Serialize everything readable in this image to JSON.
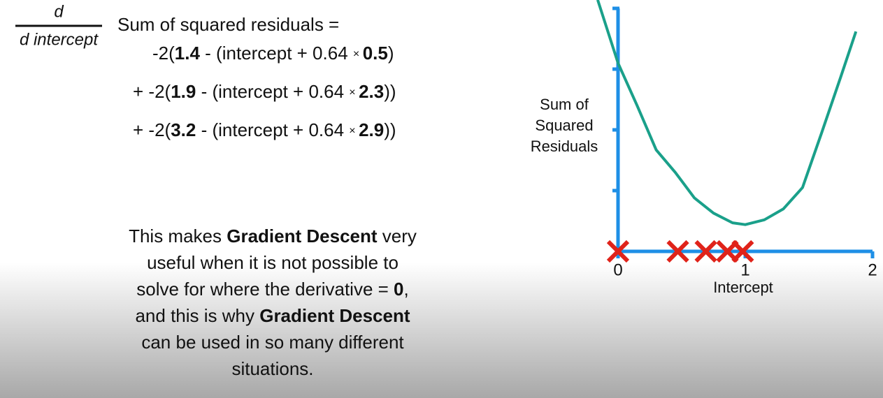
{
  "formula": {
    "numerator": "d",
    "denominator": "d intercept",
    "lead": "Sum of squared residuals =",
    "terms": [
      [
        {
          "text": "-2("
        },
        {
          "text": "1.4",
          "bold": true
        },
        {
          "text": " - (intercept + 0.64 "
        },
        {
          "text": "× ",
          "small": true
        },
        {
          "text": "0.5",
          "bold": true
        },
        {
          "text": ")"
        }
      ],
      [
        {
          "text": "+ -2("
        },
        {
          "text": "1.9",
          "bold": true
        },
        {
          "text": " - (intercept + 0.64 "
        },
        {
          "text": "× ",
          "small": true
        },
        {
          "text": "2.3",
          "bold": true
        },
        {
          "text": "))"
        }
      ],
      [
        {
          "text": "+ -2("
        },
        {
          "text": "3.2",
          "bold": true
        },
        {
          "text": " - (intercept + 0.64 "
        },
        {
          "text": "× ",
          "small": true
        },
        {
          "text": "2.9",
          "bold": true
        },
        {
          "text": "))"
        }
      ]
    ]
  },
  "paragraph": [
    [
      {
        "text": "This makes "
      },
      {
        "text": "Gradient Descent",
        "bold": true
      },
      {
        "text": " very"
      }
    ],
    [
      {
        "text": "useful when it is not possible to"
      }
    ],
    [
      {
        "text": "solve for where the derivative = "
      },
      {
        "text": "0",
        "bold": true
      },
      {
        "text": ","
      }
    ],
    [
      {
        "text": "and this is why "
      },
      {
        "text": "Gradient Descent",
        "bold": true
      }
    ],
    [
      {
        "text": "can be used in so many different"
      }
    ],
    [
      {
        "text": "situations."
      }
    ]
  ],
  "chart_data": {
    "type": "line",
    "y_label": [
      "Sum of",
      "Squared",
      "Residuals"
    ],
    "x_label": "Intercept",
    "xlim": [
      0,
      2
    ],
    "xticks": [
      0,
      1,
      2
    ],
    "ylim": [
      0,
      4
    ],
    "axis_color": "#1e8fe6",
    "series": [
      {
        "color": "#1aa08a",
        "x": [
          -0.16,
          0,
          0.15,
          0.3,
          0.45,
          0.6,
          0.75,
          0.9,
          1.0,
          1.15,
          1.3,
          1.45,
          1.6,
          1.75,
          1.87
        ],
        "values": [
          4.14,
          3.1,
          2.4,
          1.67,
          1.3,
          0.88,
          0.63,
          0.47,
          0.44,
          0.52,
          0.7,
          1.05,
          1.95,
          2.87,
          3.62
        ]
      }
    ],
    "markers": {
      "color": "#e0231a",
      "x": [
        0,
        0.47,
        0.69,
        0.86,
        0.98
      ],
      "y": [
        0,
        0,
        0,
        0,
        0
      ]
    }
  }
}
